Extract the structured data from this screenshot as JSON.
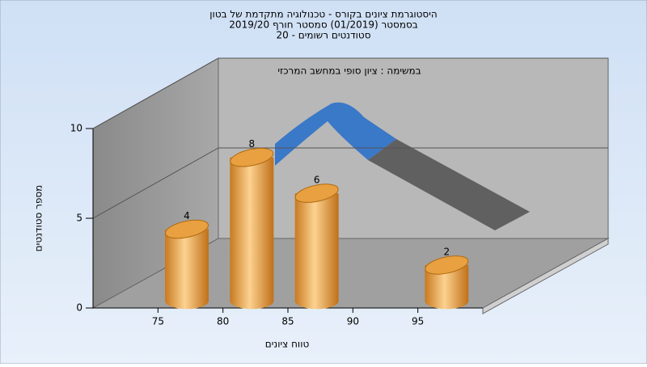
{
  "chart_data": {
    "type": "histogram",
    "title": [
      "היסטוגרמת ציונים בקורס - טכנולוגיה מתקדמת של בטון",
      "בסמסטר  (01/2019)  סמסטר חורף 2019/20",
      "סטודנטים רשומים - 20"
    ],
    "annotation": "במשימה : ציון סופי במחשב המרכזי",
    "x_label": "טווח ציונים",
    "y_label": "מספר סטודנטים",
    "bins": [
      75,
      80,
      85,
      90,
      95,
      100
    ],
    "values": [
      4,
      8,
      6,
      0,
      2
    ],
    "xlim": [
      70,
      100
    ],
    "xticks": [
      75,
      80,
      85,
      90,
      95
    ],
    "ylim": [
      0,
      10
    ],
    "yticks": [
      0,
      5,
      10
    ],
    "color": "#e8a040",
    "grid": true
  }
}
